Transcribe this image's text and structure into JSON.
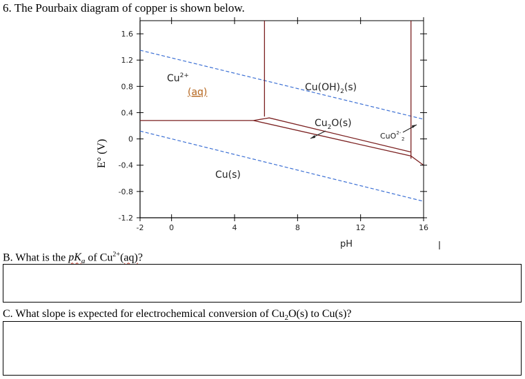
{
  "question": {
    "title": "6. The Pourbaix diagram of copper is shown below.",
    "part_b": {
      "prefix": "B. What is the ",
      "pk": "pK",
      "a": "a",
      "of": " of ",
      "cu": "Cu",
      "charge": "2+",
      "aq": "(aq)",
      "end": "?"
    },
    "part_c": {
      "prefix": "C. What slope is expected for electrochemical conversion of Cu",
      "sub": "2",
      "suffix": "O(s) to Cu(s)?"
    }
  },
  "chart_data": {
    "type": "diagram",
    "xlabel": "pH",
    "ylabel": "E° (V)",
    "x_ticks": [
      "-2",
      "0",
      "4",
      "8",
      "12",
      "16"
    ],
    "x_tick_values": [
      -2,
      0,
      4,
      8,
      12,
      16
    ],
    "y_ticks": [
      "1.6",
      "1.2",
      "0.8",
      "0.4",
      "0",
      "-0.4",
      "-0.8",
      "-1.2"
    ],
    "y_tick_values": [
      1.6,
      1.2,
      0.8,
      0.4,
      0,
      -0.4,
      -0.8,
      -1.2
    ],
    "xlim": [
      -2,
      16
    ],
    "ylim": [
      -1.2,
      1.8
    ],
    "regions": [
      {
        "label": "Cu",
        "charge": "2+",
        "line2": "(aq)"
      },
      {
        "label": "Cu(OH)",
        "sub": "2",
        "suffix": "(s)"
      },
      {
        "label": "Cu",
        "sub": "2",
        "suffix": "O(s)"
      },
      {
        "label": "CuO",
        "charge": "2-",
        "sub": "2"
      },
      {
        "label": "Cu(s)"
      }
    ],
    "boundary_lines": [
      {
        "points": [
          [
            -2,
            0.28
          ],
          [
            5.2,
            0.28
          ],
          [
            6.2,
            0.32
          ],
          [
            15.2,
            -0.2
          ]
        ]
      },
      {
        "points": [
          [
            5.2,
            0.28
          ],
          [
            15.2,
            -0.26
          ],
          [
            16,
            -0.4
          ]
        ]
      },
      {
        "points": [
          [
            5.9,
            1.8
          ],
          [
            5.9,
            0.34
          ]
        ]
      },
      {
        "points": [
          [
            15.2,
            1.8
          ],
          [
            15.2,
            -0.3
          ]
        ]
      }
    ],
    "water_lines": [
      {
        "points": [
          [
            -2,
            1.35
          ],
          [
            16,
            0.3
          ]
        ]
      },
      {
        "points": [
          [
            -2,
            0.12
          ],
          [
            16,
            -0.95
          ]
        ]
      }
    ],
    "colors": {
      "boundary": "#7a1f1f",
      "water": "#3b6fd4",
      "axis": "#000000"
    }
  }
}
